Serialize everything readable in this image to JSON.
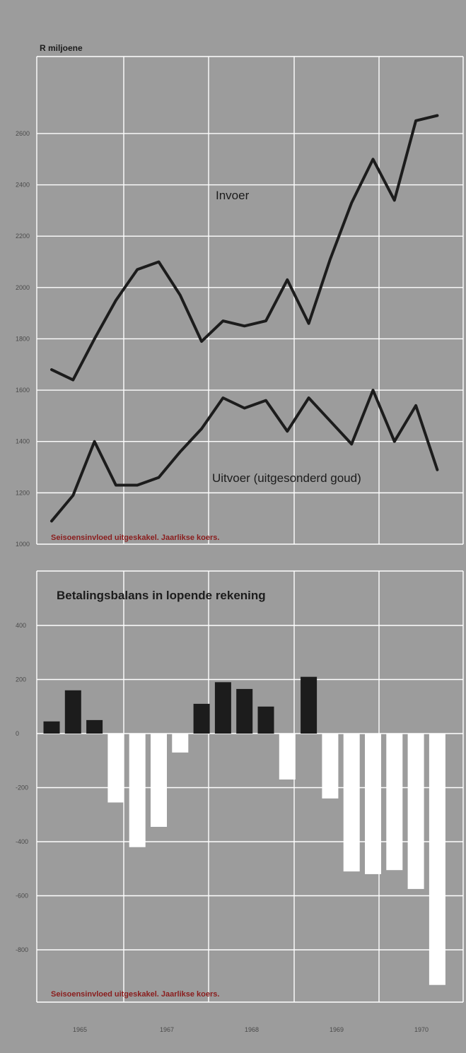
{
  "colors": {
    "background": "#9c9c9c",
    "grid": "#ffffff",
    "line": "#1c1c1c",
    "positive_bar": "#1c1c1c",
    "negative_bar": "#ffffff",
    "note_text": "#8a1d1d"
  },
  "x_tick_labels": [
    "1965",
    "1967",
    "1968",
    "1969",
    "1970"
  ],
  "chart_data": [
    {
      "type": "line",
      "ylabel": "R miljoene",
      "ylim": [
        1000,
        2900
      ],
      "yticks": [
        1000,
        1200,
        1400,
        1600,
        1800,
        2000,
        2200,
        2400,
        2600
      ],
      "ytick_labels": [
        "1000",
        "1200",
        "1400",
        "1600",
        "1800",
        "2000",
        "2200",
        "2400",
        "2600"
      ],
      "grid": true,
      "note": "Seisoensinvloed uitgeskakel. Jaarlikse koers.",
      "x": [
        0,
        1,
        2,
        3,
        4,
        5,
        6,
        7,
        8,
        9,
        10,
        11,
        12,
        13,
        14,
        15,
        16,
        17,
        18
      ],
      "series": [
        {
          "name": "Invoer",
          "values": [
            1680,
            1640,
            1800,
            1950,
            2070,
            2100,
            1970,
            1790,
            1870,
            1850,
            1870,
            2030,
            1860,
            2110,
            2330,
            2500,
            2340,
            2650,
            2670
          ]
        },
        {
          "name": "Uitvoer (uitgesonderd goud)",
          "values": [
            1090,
            1190,
            1400,
            1230,
            1230,
            1260,
            1360,
            1450,
            1570,
            1530,
            1560,
            1440,
            1570,
            1480,
            1390,
            1600,
            1400,
            1540,
            1290
          ]
        }
      ]
    },
    {
      "type": "bar",
      "title": "Betalingsbalans in lopende rekening",
      "ylim": [
        -1000,
        600
      ],
      "yticks": [
        -800,
        -600,
        -400,
        -200,
        0,
        200,
        400
      ],
      "ytick_labels": [
        "-800",
        "-600",
        "-400",
        "-200",
        "0",
        "200",
        "400"
      ],
      "grid": true,
      "note": "Seisoensinvloed uitgeskakel. Jaarlikse koers.",
      "x": [
        0,
        1,
        2,
        3,
        4,
        5,
        6,
        7,
        8,
        9,
        10,
        11,
        12,
        13,
        14,
        15,
        16,
        17,
        18
      ],
      "values": [
        45,
        160,
        50,
        -255,
        -420,
        -345,
        -70,
        110,
        190,
        165,
        100,
        -170,
        210,
        -240,
        -510,
        -520,
        -505,
        -575,
        -930
      ]
    }
  ]
}
